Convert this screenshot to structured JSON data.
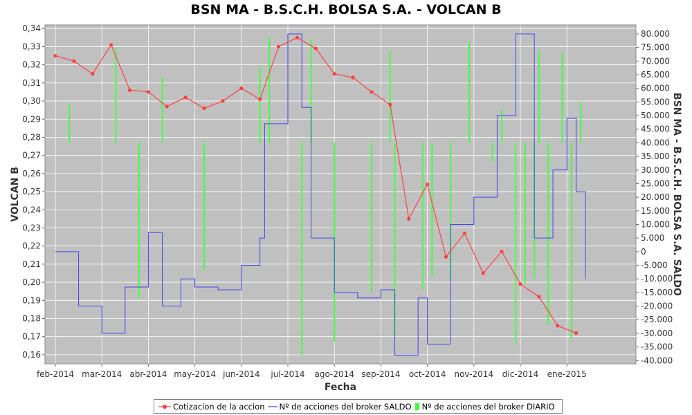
{
  "chart_data": {
    "type": "line",
    "title": "BSN MA - B.S.C.H. BOLSA S.A. - VOLCAN B",
    "xlabel": "Fecha",
    "ylabel_left": "VOLCAN B",
    "ylabel_right": "BSN MA - B.S.C.H. BOLSA S.A. SALDO",
    "x_ticks": [
      "feb-2014",
      "mar-2014",
      "abr-2014",
      "may-2014",
      "jun-2014",
      "jul-2014",
      "ago-2014",
      "sep-2014",
      "oct-2014",
      "nov-2014",
      "dic-2014",
      "ene-2015"
    ],
    "y_left_ticks": [
      "0,16",
      "0,17",
      "0,18",
      "0,19",
      "0,20",
      "0,21",
      "0,22",
      "0,23",
      "0,24",
      "0,25",
      "0,26",
      "0,27",
      "0,28",
      "0,29",
      "0,30",
      "0,31",
      "0,32",
      "0,33",
      "0,34"
    ],
    "y_right_ticks": [
      "-40.000",
      "-35.000",
      "-30.000",
      "-25.000",
      "-20.000",
      "-15.000",
      "-10.000",
      "-5.000",
      "0",
      "5.000",
      "10.000",
      "15.000",
      "20.000",
      "25.000",
      "30.000",
      "35.000",
      "40.000",
      "45.000",
      "50.000",
      "55.000",
      "60.000",
      "65.000",
      "70.000",
      "75.000",
      "80.000"
    ],
    "ylim_left": [
      0.155,
      0.342
    ],
    "ylim_right": [
      -41200,
      83300
    ],
    "grid": true,
    "legend_placement": "bottom-center",
    "colors": {
      "price": "#ff4040",
      "saldo": "#4444ee",
      "diario": "#44ff44",
      "plot_bg": "#c0c0c0",
      "grid": "#ffffff"
    },
    "series": [
      {
        "name": "Cotizacion de la accion",
        "axis": "left",
        "style": "line-markers",
        "x": [
          0.0,
          0.4,
          0.8,
          1.2,
          1.6,
          2.0,
          2.4,
          2.8,
          3.2,
          3.6,
          4.0,
          4.4,
          4.8,
          5.2,
          5.6,
          6.0,
          6.4,
          6.8,
          7.2,
          7.6,
          8.0,
          8.4,
          8.8,
          9.2,
          9.6,
          10.0,
          10.4,
          10.8,
          11.2
        ],
        "y": [
          0.325,
          0.322,
          0.315,
          0.331,
          0.306,
          0.305,
          0.297,
          0.302,
          0.296,
          0.3,
          0.307,
          0.301,
          0.33,
          0.335,
          0.329,
          0.315,
          0.313,
          0.305,
          0.298,
          0.235,
          0.254,
          0.214,
          0.227,
          0.205,
          0.217,
          0.199,
          0.192,
          0.176,
          0.172
        ]
      },
      {
        "name": "Nº de acciones del broker SALDO",
        "axis": "right",
        "style": "line",
        "x": [
          0.0,
          0.5,
          1.0,
          1.5,
          2.0,
          2.3,
          2.7,
          3.0,
          3.5,
          4.0,
          4.4,
          4.5,
          5.0,
          5.3,
          5.5,
          6.0,
          6.5,
          7.0,
          7.3,
          7.8,
          8.0,
          8.5,
          9.0,
          9.5,
          9.9,
          10.3,
          10.7,
          11.0,
          11.2,
          11.4
        ],
        "y": [
          0,
          -20000,
          -30000,
          -13000,
          7000,
          -20000,
          -10000,
          -13000,
          -14000,
          -5000,
          5000,
          47000,
          80000,
          53000,
          5000,
          -15000,
          -17000,
          -14000,
          -38000,
          -17000,
          -34000,
          10000,
          20000,
          50000,
          80000,
          5000,
          30000,
          49000,
          22000,
          -10000
        ]
      },
      {
        "name": "Nº de acciones del broker DIARIO",
        "axis": "right",
        "style": "bars",
        "x": [
          0.3,
          1.3,
          1.8,
          2.3,
          3.2,
          4.4,
          4.6,
          5.3,
          5.5,
          6.0,
          6.8,
          7.2,
          7.3,
          7.9,
          8.1,
          8.5,
          8.9,
          9.4,
          9.6,
          9.9,
          10.1,
          10.3,
          10.4,
          10.6,
          10.9,
          11.1,
          11.3
        ],
        "y": [
          54000,
          75000,
          -17000,
          64000,
          -7000,
          68000,
          79000,
          -38000,
          78000,
          -33000,
          -15000,
          74000,
          -31000,
          -14000,
          -9000,
          -10000,
          77000,
          33000,
          52000,
          -34000,
          -12000,
          -10000,
          74000,
          -27000,
          73000,
          -32000,
          55000
        ]
      }
    ]
  },
  "legend": {
    "price_label": "Cotizacion de la accion",
    "saldo_label": "Nº de acciones del broker SALDO",
    "diario_label": "Nº de acciones del broker DIARIO"
  }
}
